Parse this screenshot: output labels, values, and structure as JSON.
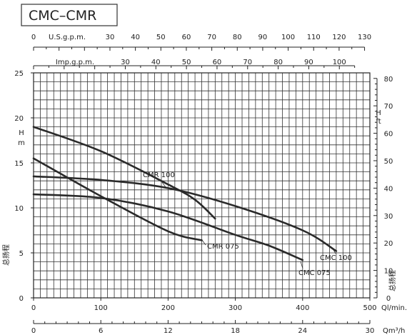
{
  "chart_data": {
    "type": "line",
    "title": "CMC–CMR",
    "x_axes": [
      {
        "id": "usgpm",
        "label": "U.S.g.p.m.",
        "ticks": [
          0,
          30,
          40,
          50,
          60,
          70,
          80,
          90,
          100,
          110,
          120,
          130
        ]
      },
      {
        "id": "impgpm",
        "label": "Imp.g.p.m.",
        "ticks": [
          30,
          40,
          50,
          60,
          70,
          80,
          90,
          100
        ]
      },
      {
        "id": "qlmin",
        "label": "Ql/min.",
        "ticks": [
          0,
          100,
          200,
          300,
          400,
          500
        ],
        "range": [
          0,
          500
        ]
      },
      {
        "id": "qm3h",
        "label": "Qm³/h",
        "ticks": [
          0,
          6,
          12,
          18,
          24,
          30
        ]
      }
    ],
    "y_axes": [
      {
        "id": "hm",
        "label": "H m",
        "side_label": "总扬程",
        "ticks": [
          0,
          5,
          10,
          15,
          20,
          25
        ],
        "range": [
          0,
          25
        ]
      },
      {
        "id": "hft",
        "label": "H ft",
        "side_label": "总扬程",
        "ticks": [
          0,
          10,
          20,
          30,
          40,
          50,
          60,
          70,
          80
        ]
      }
    ],
    "grid": true,
    "series": [
      {
        "name": "CMC 100",
        "points": [
          [
            0,
            13.5
          ],
          [
            100,
            13.1
          ],
          [
            200,
            12.2
          ],
          [
            300,
            10.2
          ],
          [
            400,
            7.5
          ],
          [
            450,
            5.2
          ]
        ]
      },
      {
        "name": "CMC 075",
        "points": [
          [
            0,
            11.5
          ],
          [
            100,
            11.1
          ],
          [
            200,
            9.6
          ],
          [
            300,
            7.0
          ],
          [
            350,
            5.8
          ],
          [
            400,
            4.2
          ]
        ]
      },
      {
        "name": "CMR 100",
        "points": [
          [
            0,
            19.0
          ],
          [
            100,
            16.3
          ],
          [
            200,
            12.6
          ],
          [
            240,
            10.9
          ],
          [
            270,
            8.8
          ]
        ]
      },
      {
        "name": "CMR 075",
        "points": [
          [
            0,
            15.5
          ],
          [
            100,
            11.3
          ],
          [
            200,
            7.4
          ],
          [
            250,
            6.4
          ]
        ]
      }
    ]
  }
}
